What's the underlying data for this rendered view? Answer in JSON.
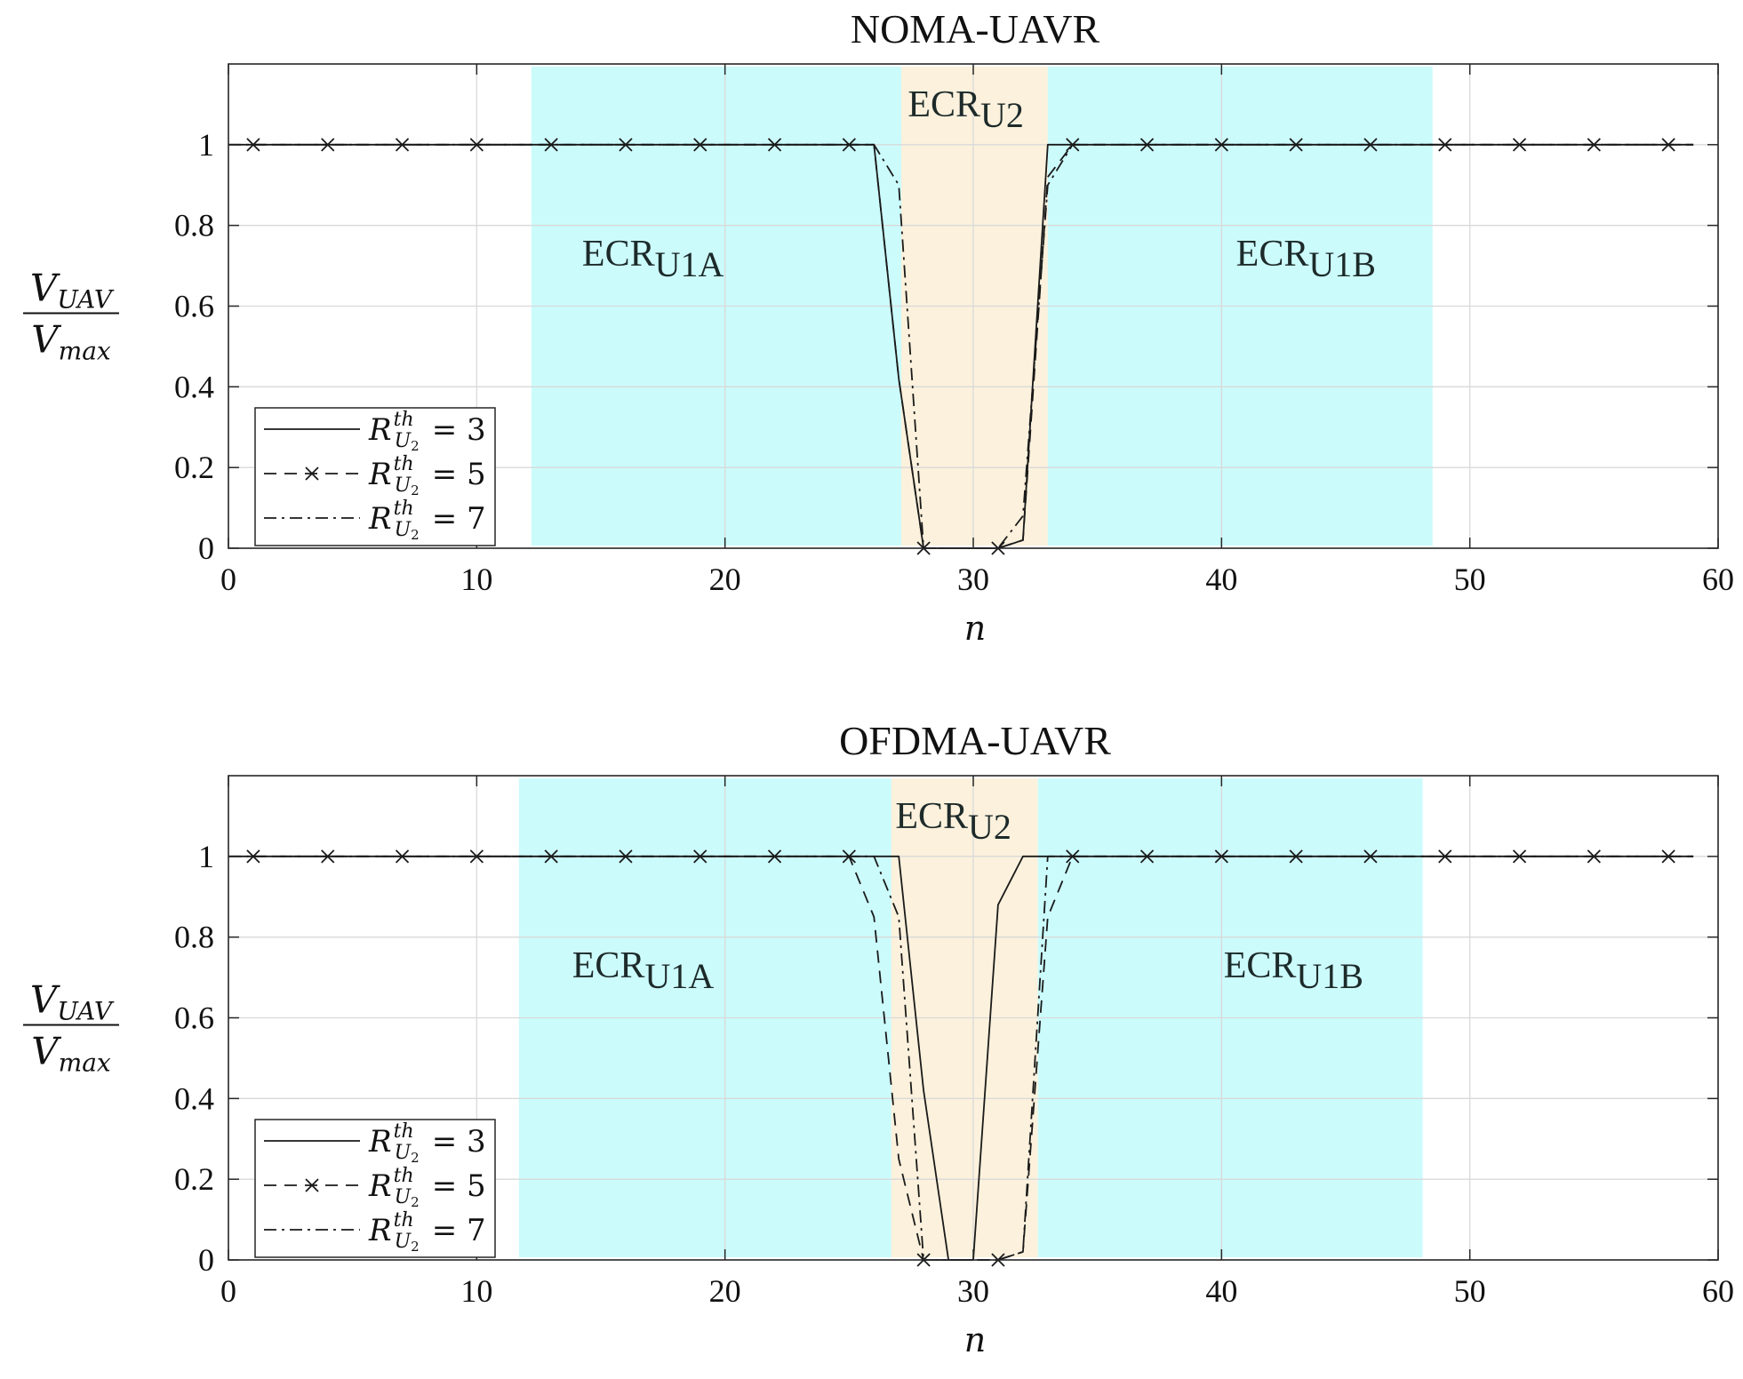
{
  "chart_data": [
    {
      "type": "line",
      "title": "NOMA-UAVR",
      "xlabel": "n",
      "ylabel": {
        "numerator": "V_UAV",
        "denominator": "V_max"
      },
      "xlim": [
        0,
        60
      ],
      "ylim": [
        0,
        1.2
      ],
      "xticks": [
        0,
        10,
        20,
        30,
        40,
        50,
        60
      ],
      "yticks": [
        0,
        0.2,
        0.4,
        0.6,
        0.8,
        1
      ],
      "grid": true,
      "legend_position": "bottom-left",
      "regions": [
        {
          "label": "ECR",
          "sub": "U1A",
          "x_start": 12.2,
          "x_end": 27.1,
          "color": "#ccfbfc",
          "label_x": 17.1,
          "label_y": 0.7
        },
        {
          "label": "ECR",
          "sub": "U2",
          "x_start": 27.1,
          "x_end": 33.0,
          "color": "#fbf1dc",
          "label_x": 29.7,
          "label_y": 1.07
        },
        {
          "label": "ECR",
          "sub": "U1B",
          "x_start": 33.0,
          "x_end": 48.5,
          "color": "#ccfbfc",
          "label_x": 43.4,
          "label_y": 0.7
        }
      ],
      "series": [
        {
          "name": "R^th_U2 = 3",
          "legend_value": "3",
          "style": "solid",
          "x": [
            0,
            26,
            27,
            28,
            29,
            30,
            31,
            32,
            33,
            34,
            59
          ],
          "y": [
            1,
            1,
            0.42,
            0,
            0,
            0,
            0,
            0.02,
            1,
            1,
            1
          ]
        },
        {
          "name": "R^th_U2 = 5",
          "legend_value": "5",
          "style": "dashed",
          "x": [
            1,
            4,
            7,
            10,
            13,
            16,
            19,
            22,
            25,
            26,
            27,
            28,
            29,
            30,
            31,
            32,
            33,
            34,
            37,
            40,
            43,
            46,
            49,
            52,
            55,
            58,
            59
          ],
          "y": [
            1,
            1,
            1,
            1,
            1,
            1,
            1,
            1,
            1,
            1,
            0.42,
            0,
            0,
            0,
            0,
            0.02,
            0.92,
            1,
            1,
            1,
            1,
            1,
            1,
            1,
            1,
            1,
            1
          ],
          "marker_x": [
            1,
            4,
            7,
            10,
            13,
            16,
            19,
            22,
            25,
            28,
            31,
            34,
            37,
            40,
            43,
            46,
            49,
            52,
            55,
            58
          ]
        },
        {
          "name": "R^th_U2 = 7",
          "legend_value": "7",
          "style": "dashdot",
          "x": [
            0,
            26,
            27,
            28,
            29,
            30,
            31,
            32,
            33,
            34,
            59
          ],
          "y": [
            1,
            1,
            0.9,
            0,
            0,
            0,
            0,
            0.08,
            0.9,
            1,
            1
          ]
        }
      ]
    },
    {
      "type": "line",
      "title": "OFDMA-UAVR",
      "xlabel": "n",
      "ylabel": {
        "numerator": "V_UAV",
        "denominator": "V_max"
      },
      "xlim": [
        0,
        60
      ],
      "ylim": [
        0,
        1.2
      ],
      "xticks": [
        0,
        10,
        20,
        30,
        40,
        50,
        60
      ],
      "yticks": [
        0,
        0.2,
        0.4,
        0.6,
        0.8,
        1
      ],
      "grid": true,
      "legend_position": "bottom-left",
      "regions": [
        {
          "label": "ECR",
          "sub": "U1A",
          "x_start": 11.7,
          "x_end": 26.7,
          "color": "#ccfbfc",
          "label_x": 16.7,
          "label_y": 0.7
        },
        {
          "label": "ECR",
          "sub": "U2",
          "x_start": 26.7,
          "x_end": 32.6,
          "color": "#fbf1dc",
          "label_x": 29.2,
          "label_y": 1.07
        },
        {
          "label": "ECR",
          "sub": "U1B",
          "x_start": 32.6,
          "x_end": 48.1,
          "color": "#ccfbfc",
          "label_x": 42.9,
          "label_y": 0.7
        }
      ],
      "series": [
        {
          "name": "R^th_U2 = 3",
          "legend_value": "3",
          "style": "solid",
          "x": [
            0,
            27,
            28,
            29,
            30,
            31,
            32,
            59
          ],
          "y": [
            1,
            1,
            0.42,
            0,
            0,
            0.88,
            1,
            1
          ]
        },
        {
          "name": "R^th_U2 = 5",
          "legend_value": "5",
          "style": "dashed",
          "x": [
            1,
            4,
            7,
            10,
            13,
            16,
            19,
            22,
            25,
            26,
            27,
            28,
            29,
            30,
            31,
            32,
            33,
            34,
            37,
            40,
            43,
            46,
            49,
            52,
            55,
            58,
            59
          ],
          "y": [
            1,
            1,
            1,
            1,
            1,
            1,
            1,
            1,
            1,
            0.85,
            0.25,
            0,
            0,
            0,
            0,
            0.02,
            0.85,
            1,
            1,
            1,
            1,
            1,
            1,
            1,
            1,
            1,
            1
          ],
          "marker_x": [
            1,
            4,
            7,
            10,
            13,
            16,
            19,
            22,
            25,
            28,
            31,
            34,
            37,
            40,
            43,
            46,
            49,
            52,
            55,
            58
          ]
        },
        {
          "name": "R^th_U2 = 7",
          "legend_value": "7",
          "style": "dashdot",
          "x": [
            0,
            26,
            27,
            28,
            29,
            30,
            31,
            32,
            33,
            34,
            59
          ],
          "y": [
            1,
            1,
            0.85,
            0,
            0,
            0,
            0,
            0.02,
            1,
            1,
            1
          ]
        }
      ]
    }
  ]
}
